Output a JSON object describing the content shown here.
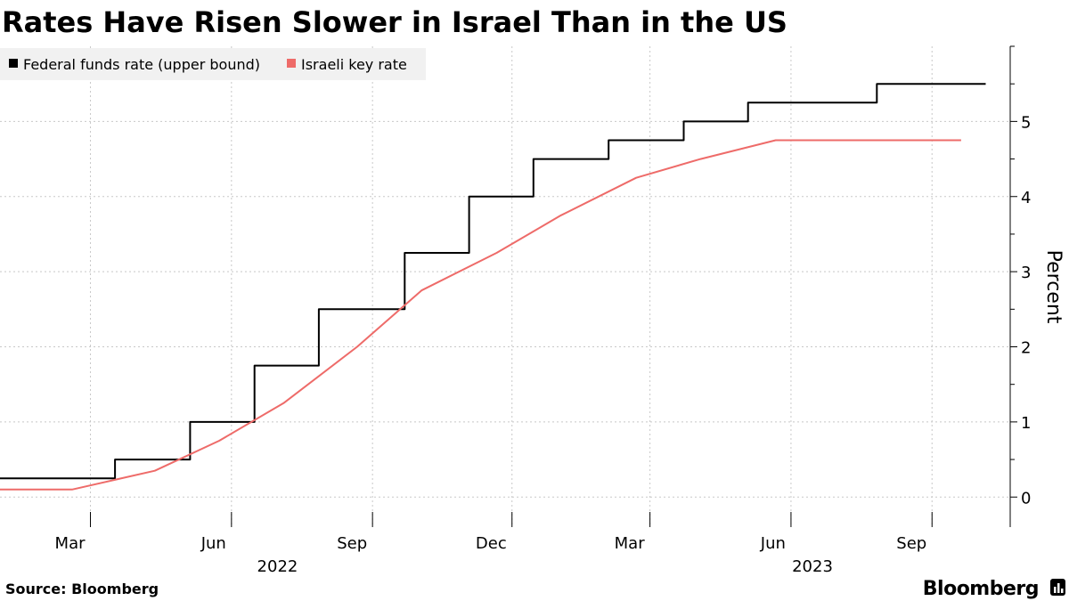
{
  "chart_data": {
    "type": "line",
    "title": "Rates Have Risen Slower in Israel Than in the US",
    "ylabel": "Percent",
    "xlabel": "",
    "ylim": [
      -0.4,
      6.0
    ],
    "xlim": [
      "2022-01-01",
      "2023-10-22"
    ],
    "yticks": [
      0,
      1,
      2,
      3,
      4,
      5
    ],
    "x_month_ticks": [
      {
        "label": "Mar",
        "date": "2022-03-01"
      },
      {
        "label": "Jun",
        "date": "2022-06-01"
      },
      {
        "label": "Sep",
        "date": "2022-09-01"
      },
      {
        "label": "Dec",
        "date": "2022-12-01"
      },
      {
        "label": "Mar",
        "date": "2023-03-01"
      },
      {
        "label": "Jun",
        "date": "2023-06-01"
      },
      {
        "label": "Sep",
        "date": "2023-09-01"
      }
    ],
    "x_year_labels": [
      {
        "label": "2022",
        "date": "2022-07-01"
      },
      {
        "label": "2023",
        "date": "2023-06-15"
      }
    ],
    "grid": true,
    "legend_position": "top-left",
    "series": [
      {
        "name": "Federal funds rate (upper bound)",
        "color": "#000000",
        "step": true,
        "points": [
          [
            "2022-01-01",
            0.25
          ],
          [
            "2022-03-17",
            0.5
          ],
          [
            "2022-05-05",
            1.0
          ],
          [
            "2022-06-16",
            1.75
          ],
          [
            "2022-07-28",
            2.5
          ],
          [
            "2022-09-22",
            3.25
          ],
          [
            "2022-11-03",
            4.0
          ],
          [
            "2022-12-15",
            4.5
          ],
          [
            "2023-02-02",
            4.75
          ],
          [
            "2023-03-23",
            5.0
          ],
          [
            "2023-05-04",
            5.25
          ],
          [
            "2023-07-27",
            5.5
          ],
          [
            "2023-10-06",
            5.5
          ]
        ]
      },
      {
        "name": "Israeli key rate",
        "color": "#ee6b69",
        "step": false,
        "points": [
          [
            "2022-01-01",
            0.1
          ],
          [
            "2022-02-17",
            0.1
          ],
          [
            "2022-04-12",
            0.35
          ],
          [
            "2022-05-24",
            0.75
          ],
          [
            "2022-07-05",
            1.25
          ],
          [
            "2022-08-22",
            2.0
          ],
          [
            "2022-10-03",
            2.75
          ],
          [
            "2022-11-21",
            3.25
          ],
          [
            "2023-01-02",
            3.75
          ],
          [
            "2023-02-20",
            4.25
          ],
          [
            "2023-04-03",
            4.5
          ],
          [
            "2023-05-22",
            4.75
          ],
          [
            "2023-09-20",
            4.75
          ]
        ]
      }
    ]
  },
  "footer": {
    "source": "Source: Bloomberg",
    "brand": "Bloomberg"
  }
}
